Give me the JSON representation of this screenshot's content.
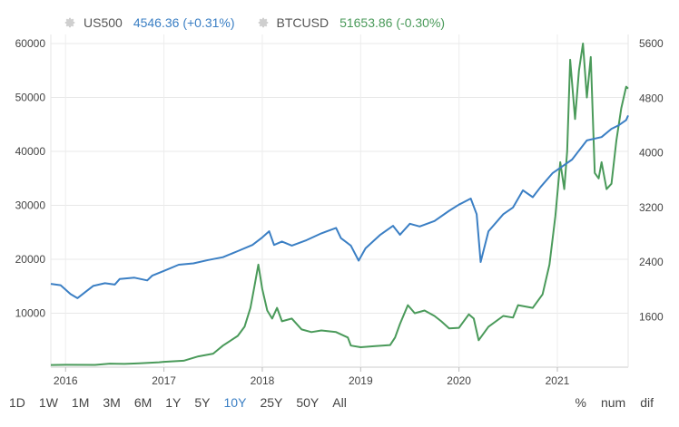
{
  "legend": [
    {
      "name": "US500",
      "value": "4546.36",
      "change": "(+0.31%)",
      "color": "#3b7fc4"
    },
    {
      "name": "BTCUSD",
      "value": "51653.86",
      "change": "(-0.30%)",
      "color": "#4a9a5a"
    }
  ],
  "periods": [
    "1D",
    "1W",
    "1M",
    "3M",
    "6M",
    "1Y",
    "5Y",
    "10Y",
    "25Y",
    "50Y",
    "All"
  ],
  "active_period": "10Y",
  "modes": [
    "%",
    "num",
    "dif"
  ],
  "chart_data": {
    "type": "line",
    "x_start": "2015-11",
    "x_end": "2021-08",
    "x_ticks": [
      {
        "label": "2016",
        "date": 2016.0
      },
      {
        "label": "2017",
        "date": 2017.0
      },
      {
        "label": "2018",
        "date": 2018.0
      },
      {
        "label": "2019",
        "date": 2019.0
      },
      {
        "label": "2020",
        "date": 2020.0
      },
      {
        "label": "2021",
        "date": 2021.0
      }
    ],
    "left_axis": {
      "ticks": [
        10000,
        20000,
        30000,
        40000,
        50000,
        60000
      ],
      "range": [
        0,
        60000
      ]
    },
    "right_axis": {
      "ticks": [
        1600,
        2400,
        3200,
        4000,
        4800,
        5600
      ],
      "range": [
        860,
        5600
      ]
    },
    "grid": true,
    "series": [
      {
        "name": "US500",
        "axis": "right",
        "color": "#3b7fc4",
        "points": [
          [
            2015.85,
            2080
          ],
          [
            2015.95,
            2060
          ],
          [
            2016.05,
            1930
          ],
          [
            2016.12,
            1870
          ],
          [
            2016.2,
            1960
          ],
          [
            2016.28,
            2050
          ],
          [
            2016.4,
            2090
          ],
          [
            2016.5,
            2070
          ],
          [
            2016.55,
            2150
          ],
          [
            2016.7,
            2170
          ],
          [
            2016.83,
            2130
          ],
          [
            2016.88,
            2200
          ],
          [
            2017.0,
            2270
          ],
          [
            2017.15,
            2360
          ],
          [
            2017.3,
            2380
          ],
          [
            2017.45,
            2430
          ],
          [
            2017.6,
            2470
          ],
          [
            2017.75,
            2560
          ],
          [
            2017.9,
            2650
          ],
          [
            2018.0,
            2760
          ],
          [
            2018.07,
            2850
          ],
          [
            2018.12,
            2650
          ],
          [
            2018.2,
            2700
          ],
          [
            2018.3,
            2640
          ],
          [
            2018.45,
            2720
          ],
          [
            2018.6,
            2820
          ],
          [
            2018.75,
            2900
          ],
          [
            2018.8,
            2750
          ],
          [
            2018.9,
            2640
          ],
          [
            2018.98,
            2420
          ],
          [
            2019.05,
            2600
          ],
          [
            2019.2,
            2800
          ],
          [
            2019.33,
            2930
          ],
          [
            2019.4,
            2800
          ],
          [
            2019.5,
            2960
          ],
          [
            2019.6,
            2920
          ],
          [
            2019.75,
            3000
          ],
          [
            2019.9,
            3150
          ],
          [
            2020.0,
            3240
          ],
          [
            2020.12,
            3330
          ],
          [
            2020.18,
            3100
          ],
          [
            2020.22,
            2400
          ],
          [
            2020.3,
            2850
          ],
          [
            2020.45,
            3100
          ],
          [
            2020.55,
            3200
          ],
          [
            2020.65,
            3450
          ],
          [
            2020.75,
            3350
          ],
          [
            2020.83,
            3500
          ],
          [
            2020.95,
            3700
          ],
          [
            2021.05,
            3800
          ],
          [
            2021.15,
            3900
          ],
          [
            2021.3,
            4180
          ],
          [
            2021.45,
            4230
          ],
          [
            2021.55,
            4350
          ],
          [
            2021.62,
            4400
          ],
          [
            2021.7,
            4480
          ],
          [
            2021.72,
            4546
          ]
        ]
      },
      {
        "name": "BTCUSD",
        "axis": "left",
        "color": "#4a9a5a",
        "points": [
          [
            2015.85,
            400
          ],
          [
            2016.0,
            430
          ],
          [
            2016.3,
            420
          ],
          [
            2016.45,
            650
          ],
          [
            2016.6,
            600
          ],
          [
            2016.75,
            700
          ],
          [
            2016.95,
            900
          ],
          [
            2017.0,
            1000
          ],
          [
            2017.2,
            1200
          ],
          [
            2017.35,
            2000
          ],
          [
            2017.5,
            2500
          ],
          [
            2017.6,
            4000
          ],
          [
            2017.75,
            5800
          ],
          [
            2017.82,
            7500
          ],
          [
            2017.88,
            11000
          ],
          [
            2017.92,
            15000
          ],
          [
            2017.96,
            19000
          ],
          [
            2018.0,
            14500
          ],
          [
            2018.05,
            10500
          ],
          [
            2018.1,
            9000
          ],
          [
            2018.15,
            11000
          ],
          [
            2018.2,
            8500
          ],
          [
            2018.3,
            9000
          ],
          [
            2018.4,
            7000
          ],
          [
            2018.5,
            6500
          ],
          [
            2018.6,
            6800
          ],
          [
            2018.75,
            6500
          ],
          [
            2018.87,
            5500
          ],
          [
            2018.9,
            4000
          ],
          [
            2019.0,
            3700
          ],
          [
            2019.15,
            3900
          ],
          [
            2019.3,
            4100
          ],
          [
            2019.35,
            5500
          ],
          [
            2019.4,
            8000
          ],
          [
            2019.48,
            11500
          ],
          [
            2019.55,
            10000
          ],
          [
            2019.65,
            10500
          ],
          [
            2019.75,
            9500
          ],
          [
            2019.82,
            8500
          ],
          [
            2019.9,
            7200
          ],
          [
            2020.0,
            7300
          ],
          [
            2020.1,
            9800
          ],
          [
            2020.15,
            9000
          ],
          [
            2020.2,
            5000
          ],
          [
            2020.3,
            7500
          ],
          [
            2020.45,
            9500
          ],
          [
            2020.55,
            9200
          ],
          [
            2020.6,
            11500
          ],
          [
            2020.75,
            11000
          ],
          [
            2020.85,
            13500
          ],
          [
            2020.92,
            19000
          ],
          [
            2020.98,
            28000
          ],
          [
            2021.03,
            38000
          ],
          [
            2021.07,
            33000
          ],
          [
            2021.1,
            40000
          ],
          [
            2021.13,
            57000
          ],
          [
            2021.18,
            46000
          ],
          [
            2021.22,
            55000
          ],
          [
            2021.26,
            60000
          ],
          [
            2021.3,
            50000
          ],
          [
            2021.34,
            57500
          ],
          [
            2021.38,
            36000
          ],
          [
            2021.42,
            35000
          ],
          [
            2021.45,
            38000
          ],
          [
            2021.5,
            33000
          ],
          [
            2021.55,
            34000
          ],
          [
            2021.6,
            42000
          ],
          [
            2021.65,
            48000
          ],
          [
            2021.7,
            52000
          ],
          [
            2021.72,
            51654
          ]
        ]
      }
    ]
  }
}
